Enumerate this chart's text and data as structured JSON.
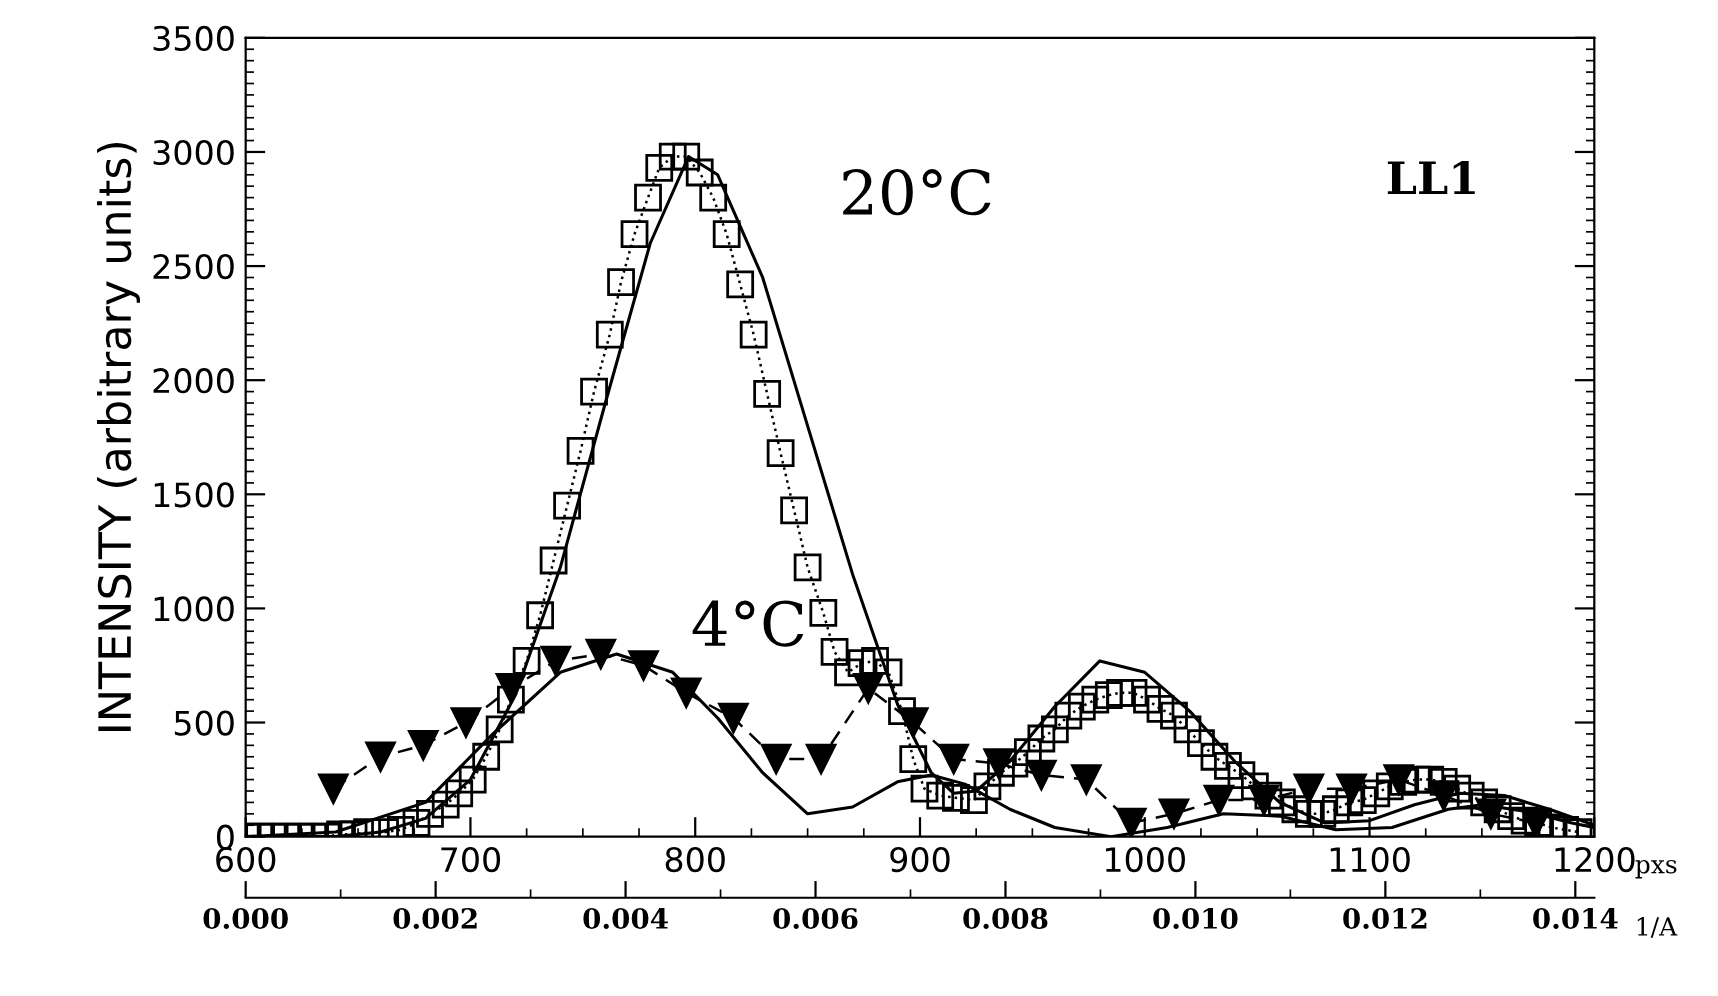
{
  "chart_data": {
    "type": "line",
    "ylabel": "INTENSITY (arbitrary units)",
    "xlabel": "pxs",
    "x2label": "1/A",
    "xlim": [
      600,
      1200
    ],
    "xticks": [
      600,
      700,
      800,
      900,
      1000,
      1100,
      1200
    ],
    "ylim": [
      0,
      3500
    ],
    "yticks": [
      0,
      500,
      1000,
      1500,
      2000,
      2500,
      3000,
      3500
    ],
    "x2lim": [
      0,
      0.0142
    ],
    "x2ticks": [
      {
        "value": 0,
        "label": "0.000"
      },
      {
        "value": 0.002,
        "label": "0.002"
      },
      {
        "value": 0.004,
        "label": "0.004"
      },
      {
        "value": 0.006,
        "label": "0.006"
      },
      {
        "value": 0.008,
        "label": "0.008"
      },
      {
        "value": 0.01,
        "label": "0.010"
      },
      {
        "value": 0.012,
        "label": "0.012"
      },
      {
        "value": 0.014,
        "label": "0.014"
      }
    ],
    "grid": false,
    "annotations": [
      "20°C",
      "4°C",
      "LL1"
    ],
    "series": [
      {
        "color": "#000000",
        "marker": "square",
        "line_style": "dotted",
        "x": [
          600,
          606,
          612,
          618,
          624,
          630,
          636,
          642,
          648,
          654,
          662,
          669,
          676,
          682,
          689,
          695,
          701,
          707,
          713,
          718,
          725,
          731,
          737,
          743,
          749,
          755,
          762,
          767,
          773,
          779,
          784,
          790,
          796,
          802,
          808,
          814,
          820,
          826,
          832,
          838,
          844,
          850,
          857,
          862,
          868,
          874,
          880,
          886,
          892,
          897,
          902,
          909,
          916,
          924,
          930,
          936,
          942,
          948,
          954,
          960,
          966,
          972,
          978,
          984,
          989,
          995,
          1001,
          1007,
          1013,
          1019,
          1025,
          1031,
          1037,
          1043,
          1049,
          1055,
          1061,
          1067,
          1073,
          1079,
          1085,
          1091,
          1097,
          1103,
          1109,
          1115,
          1121,
          1127,
          1133,
          1139,
          1145,
          1151,
          1157,
          1163,
          1169,
          1175,
          1181,
          1187,
          1193
        ],
        "values": [
          0,
          0,
          0,
          0,
          0,
          0,
          0,
          10,
          10,
          20,
          20,
          30,
          60,
          100,
          140,
          190,
          250,
          350,
          470,
          600,
          770,
          970,
          1210,
          1450,
          1690,
          1950,
          2200,
          2430,
          2640,
          2800,
          2930,
          2980,
          2980,
          2910,
          2800,
          2640,
          2420,
          2200,
          1940,
          1680,
          1430,
          1180,
          980,
          810,
          720,
          760,
          770,
          720,
          550,
          340,
          210,
          180,
          170,
          160,
          220,
          280,
          320,
          370,
          430,
          470,
          530,
          570,
          600,
          620,
          630,
          630,
          600,
          560,
          530,
          470,
          410,
          350,
          310,
          270,
          220,
          180,
          150,
          120,
          100,
          100,
          120,
          150,
          160,
          190,
          220,
          240,
          250,
          250,
          240,
          210,
          180,
          150,
          120,
          90,
          70,
          60,
          40,
          30,
          20
        ]
      },
      {
        "color": "#000000",
        "marker": "triangle",
        "line_style": "dashed",
        "x": [
          639,
          660,
          679,
          698,
          718,
          738,
          758,
          777,
          796,
          817,
          836,
          856,
          877,
          897,
          915,
          935,
          954,
          974,
          994,
          1013,
          1033,
          1053,
          1073,
          1092,
          1113,
          1133,
          1154,
          1174
        ],
        "values": [
          210,
          350,
          400,
          500,
          650,
          770,
          800,
          750,
          630,
          520,
          340,
          340,
          650,
          500,
          340,
          320,
          270,
          250,
          60,
          100,
          160,
          160,
          210,
          210,
          250,
          180,
          100,
          60
        ]
      },
      {
        "color": "#000000",
        "marker": "none",
        "line_style": "solid",
        "x": [
          600,
          640,
          660,
          680,
          700,
          720,
          740,
          760,
          780,
          797,
          810,
          830,
          850,
          870,
          890,
          905,
          915,
          925,
          940,
          960,
          980,
          1000,
          1020,
          1040,
          1060,
          1080,
          1100,
          1120,
          1140,
          1160,
          1180,
          1200
        ],
        "values": [
          0,
          0,
          20,
          80,
          250,
          620,
          1180,
          1900,
          2600,
          2980,
          2900,
          2450,
          1800,
          1150,
          580,
          280,
          190,
          200,
          330,
          570,
          770,
          720,
          550,
          330,
          150,
          60,
          70,
          140,
          190,
          180,
          120,
          50
        ]
      },
      {
        "color": "#000000",
        "marker": "none",
        "line_style": "solid",
        "x": [
          600,
          640,
          680,
          710,
          740,
          765,
          790,
          810,
          830,
          850,
          870,
          890,
          905,
          920,
          940,
          960,
          985,
          1010,
          1035,
          1060,
          1085,
          1110,
          1135,
          1150,
          1170,
          1190,
          1200
        ],
        "values": [
          0,
          20,
          150,
          450,
          720,
          800,
          720,
          520,
          280,
          100,
          130,
          240,
          270,
          230,
          120,
          40,
          0,
          40,
          100,
          90,
          30,
          40,
          120,
          140,
          110,
          60,
          40
        ]
      }
    ]
  }
}
